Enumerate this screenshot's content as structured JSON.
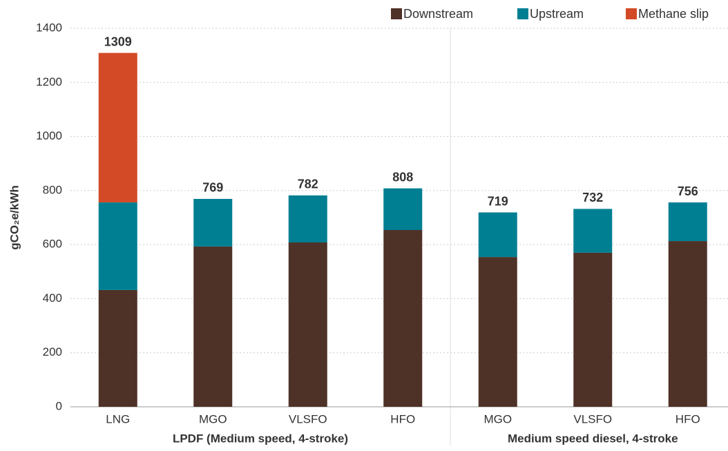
{
  "chart_data": {
    "type": "stacked_bar",
    "y_label": "gCO₂e/kWh",
    "groups": [
      {
        "name": "LPDF (Medium speed, 4-stroke)",
        "categories": [
          "LNG",
          "MGO",
          "VLSFO",
          "HFO"
        ]
      },
      {
        "name": "Medium speed diesel, 4-stroke",
        "categories": [
          "MGO",
          "VLSFO",
          "HFO"
        ]
      }
    ],
    "series": [
      {
        "name": "Downstream",
        "color": "#4e3227",
        "values": [
          432,
          593,
          608,
          654,
          554,
          570,
          613
        ]
      },
      {
        "name": "Upstream",
        "color": "#007f93",
        "values": [
          324,
          176,
          174,
          154,
          165,
          162,
          143
        ]
      },
      {
        "name": "Methane slip",
        "color": "#d34a26",
        "values": [
          553,
          0,
          0,
          0,
          0,
          0,
          0
        ]
      }
    ],
    "totals": [
      1309,
      769,
      782,
      808,
      719,
      732,
      756
    ],
    "ylim": [
      0,
      1400
    ],
    "yticks": [
      0,
      200,
      400,
      600,
      800,
      1000,
      1200,
      1400
    ],
    "grid": true,
    "legend": "top-right"
  }
}
